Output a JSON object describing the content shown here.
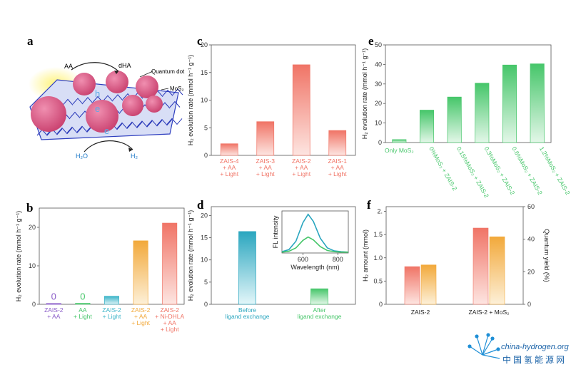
{
  "panel_labels": {
    "a": "a",
    "b": "b",
    "c": "c",
    "d": "d",
    "e": "e",
    "f": "f"
  },
  "schematic": {
    "aa": "AA",
    "dha": "dHA",
    "quantum_dot": "Quantum dot",
    "mos2": "MoS₂",
    "h": "h",
    "e_top": "e",
    "e_bottom": "e",
    "h2o": "H₂O",
    "h2": "H₂"
  },
  "watermark": {
    "en": "china-hydrogen.org",
    "zh": "中国氢能源网"
  },
  "colors": {
    "orange": "#f2a93b",
    "red": "#f07466",
    "green": "#46c66a",
    "blue": "#3bb4c8",
    "purple": "#8a5cc8",
    "teal": "#2aa6bf"
  },
  "chart_data": [
    {
      "id": "b",
      "type": "bar",
      "ylabel": "H₂ evolution rate (mmol h⁻¹ g⁻¹)",
      "ylim": [
        0,
        25
      ],
      "yticks": [
        0,
        10,
        20
      ],
      "categories": [
        [
          "ZAIS-2",
          "+ AA"
        ],
        [
          "AA",
          "+ Light"
        ],
        [
          "ZAIS-2",
          "+ Light"
        ],
        [
          "ZAIS-2",
          "+ AA",
          "+ Light"
        ],
        [
          "ZAIS-2",
          "+ Ni-DHLA",
          "+ AA",
          "+ Light"
        ]
      ],
      "values": [
        0.25,
        0.3,
        2.1,
        16.5,
        21.1
      ],
      "colors": [
        "#8a5cc8",
        "#46c66a",
        "#3bb4c8",
        "#f2a93b",
        "#f07466"
      ],
      "data_labels": [
        "0",
        "0",
        "",
        "",
        ""
      ]
    },
    {
      "id": "c",
      "type": "bar",
      "ylabel": "H₂ evolution rate (mmol h⁻¹ g⁻¹)",
      "ylim": [
        0,
        20
      ],
      "yticks": [
        0,
        5,
        10,
        15,
        20
      ],
      "categories": [
        [
          "ZAIS-4",
          "+ AA",
          "+ Light"
        ],
        [
          "ZAIS-3",
          "+ AA",
          "+ Light"
        ],
        [
          "ZAIS-2",
          "+ AA",
          "+ Light"
        ],
        [
          "ZAIS-1",
          "+ AA",
          "+ Light"
        ]
      ],
      "values": [
        2.1,
        6.1,
        16.4,
        4.5
      ],
      "colors": [
        "#f07466",
        "#f07466",
        "#f07466",
        "#f07466"
      ]
    },
    {
      "id": "d",
      "type": "bar",
      "ylabel": "H₂ evolution rate (mmol h⁻¹ g⁻¹)",
      "ylim": [
        0,
        22
      ],
      "yticks": [
        0,
        5,
        10,
        15,
        20
      ],
      "categories": [
        [
          "Before",
          "ligand exchange"
        ],
        [
          "After",
          "ligand exchange"
        ]
      ],
      "values": [
        16.4,
        3.5
      ],
      "colors": [
        "#2aa6bf",
        "#46c66a"
      ],
      "inset": {
        "type": "line",
        "xlabel": "Wavelength (nm)",
        "ylabel": "FL intensity",
        "xticks": [
          600,
          800
        ],
        "xlim": [
          480,
          860
        ],
        "series": [
          {
            "color": "#2aa6bf",
            "x": [
              480,
              520,
              560,
              600,
              630,
              660,
              700,
              740,
              780,
              820,
              860
            ],
            "y": [
              0.03,
              0.08,
              0.28,
              0.72,
              0.92,
              0.75,
              0.35,
              0.12,
              0.05,
              0.03,
              0.02
            ]
          },
          {
            "color": "#46c66a",
            "x": [
              480,
              520,
              560,
              600,
              630,
              660,
              700,
              740,
              780,
              820,
              860
            ],
            "y": [
              0.02,
              0.04,
              0.12,
              0.3,
              0.38,
              0.31,
              0.15,
              0.06,
              0.03,
              0.02,
              0.02
            ]
          }
        ]
      }
    },
    {
      "id": "e",
      "type": "bar",
      "ylabel": "H₂ evolution rate (mmol h⁻¹ g⁻¹)",
      "ylim": [
        0,
        50
      ],
      "yticks": [
        0,
        10,
        20,
        30,
        40,
        50
      ],
      "categories": [
        "Only MoS₂",
        "0%MoS₂ + ZAIS-2",
        "0.15%MoS₂ + ZAIS-2",
        "0.3%MoS₂ + ZAIS-2",
        "0.6%MoS₂ + ZAIS-2",
        "1.2%MoS₂ + ZAIS-2"
      ],
      "values": [
        1.5,
        16.6,
        23.3,
        30.4,
        39.7,
        40.3
      ],
      "colors": [
        "#46c66a",
        "#46c66a",
        "#46c66a",
        "#46c66a",
        "#46c66a",
        "#46c66a"
      ]
    },
    {
      "id": "f",
      "type": "bar",
      "ylabel": "H₂ amount (mmol)",
      "y2label": "Quantum yield (%)",
      "ylim": [
        0,
        2.1
      ],
      "yticks": [
        0,
        0.5,
        1,
        1.5,
        2
      ],
      "ytick_labels": [
        "0",
        "0.5",
        "1.0",
        "1.5",
        "2."
      ],
      "y2lim": [
        0,
        60
      ],
      "y2ticks": [
        0,
        20,
        40,
        60
      ],
      "categories": [
        "ZAIS-2",
        "ZAIS-2 + MoS₂"
      ],
      "series": [
        {
          "axis": "left",
          "color": "#f07466",
          "values": [
            0.81,
            1.64
          ]
        },
        {
          "axis": "right",
          "color": "#f2a93b",
          "values": [
            24.2,
            41.5
          ]
        }
      ]
    }
  ]
}
